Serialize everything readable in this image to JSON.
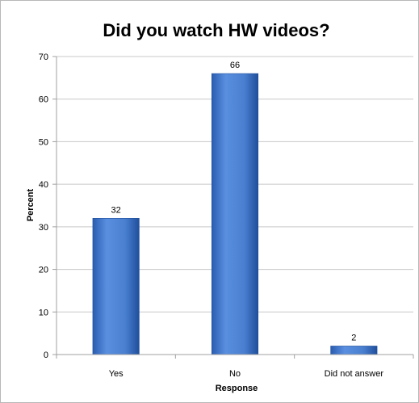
{
  "chart_data": {
    "type": "bar",
    "title": "Did you watch HW videos?",
    "xlabel": "Response",
    "ylabel": "Percent",
    "categories": [
      "Yes",
      "No",
      "Did not answer"
    ],
    "values": [
      32,
      66,
      2
    ],
    "data_labels": [
      "32",
      "66",
      "2"
    ],
    "ylim": [
      0,
      70
    ],
    "yticks": [
      0,
      10,
      20,
      30,
      40,
      50,
      60,
      70
    ],
    "ytick_labels": [
      "0",
      "10",
      "20",
      "30",
      "40",
      "50",
      "60",
      "70"
    ],
    "grid": true,
    "legend": "none",
    "colors": {
      "bar": "#4a7fd0",
      "bar_dark": "#1f4f9c",
      "grid": "#c8c8c8",
      "axis": "#a0a0a0"
    }
  }
}
